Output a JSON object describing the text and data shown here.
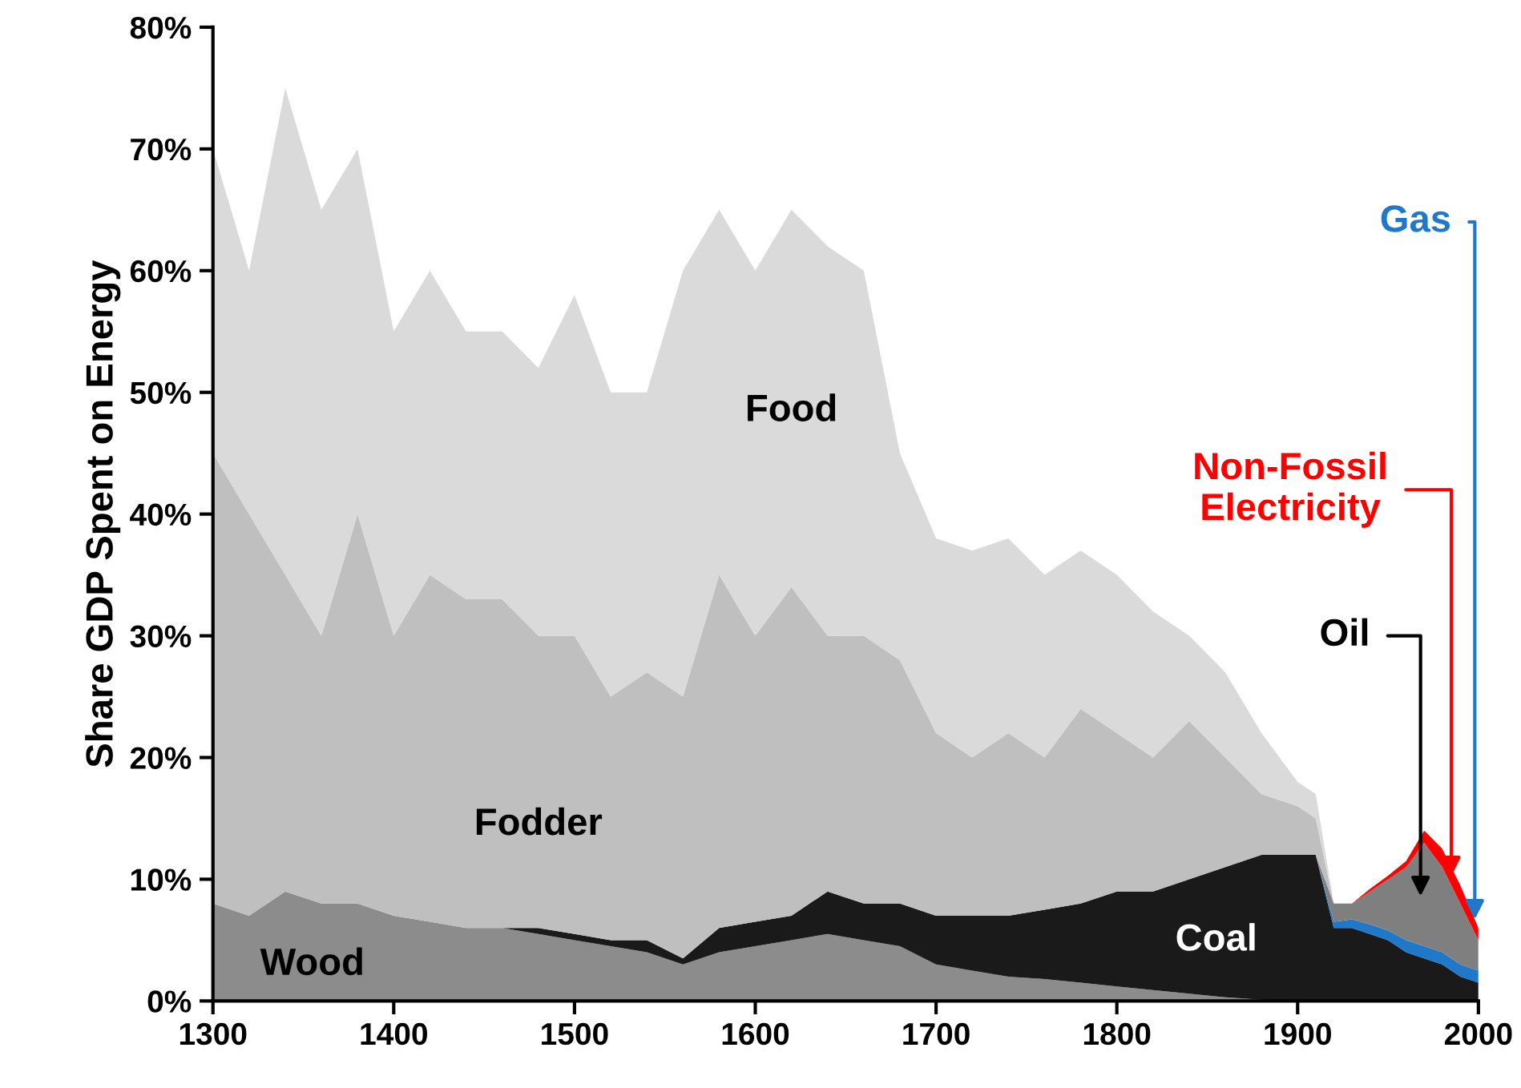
{
  "chart_data": {
    "type": "area",
    "stacked": true,
    "ylabel": "Share GDP Spent on Energy",
    "x": [
      1300,
      1320,
      1340,
      1360,
      1380,
      1400,
      1420,
      1440,
      1460,
      1480,
      1500,
      1520,
      1540,
      1560,
      1580,
      1600,
      1620,
      1640,
      1660,
      1680,
      1700,
      1720,
      1740,
      1760,
      1780,
      1800,
      1820,
      1840,
      1860,
      1880,
      1900,
      1910,
      1920,
      1930,
      1940,
      1950,
      1960,
      1970,
      1980,
      1990,
      2000
    ],
    "series": [
      {
        "name": "Wood",
        "color": "#8c8c8c",
        "values": [
          8,
          7,
          9,
          8,
          8,
          7,
          6.5,
          6,
          6,
          5.5,
          5,
          4.5,
          4,
          3,
          4,
          4.5,
          5,
          5.5,
          5,
          4.5,
          3,
          2.5,
          2,
          1.8,
          1.5,
          1.2,
          0.9,
          0.6,
          0.3,
          0.1,
          0,
          0,
          0,
          0,
          0,
          0,
          0,
          0,
          0,
          0,
          0
        ]
      },
      {
        "name": "Coal",
        "color": "#1a1a1a",
        "values": [
          0,
          0,
          0,
          0,
          0,
          0,
          0,
          0,
          0,
          0.5,
          0.5,
          0.5,
          1,
          0.5,
          2,
          2,
          2,
          3.5,
          3,
          3.5,
          4,
          4.5,
          5,
          5.7,
          6.5,
          7.8,
          8.1,
          9.4,
          10.7,
          11.9,
          12,
          12,
          6,
          6,
          5.5,
          5,
          4,
          3.5,
          3,
          2,
          1.5
        ]
      },
      {
        "name": "Gas",
        "color": "#1f78c8",
        "values": [
          0,
          0,
          0,
          0,
          0,
          0,
          0,
          0,
          0,
          0,
          0,
          0,
          0,
          0,
          0,
          0,
          0,
          0,
          0,
          0,
          0,
          0,
          0,
          0,
          0,
          0,
          0,
          0,
          0,
          0,
          0,
          0,
          0.5,
          0.7,
          0.8,
          0.8,
          1,
          1,
          1,
          1,
          1
        ]
      },
      {
        "name": "Oil",
        "color": "#7f7f7f",
        "values": [
          0,
          0,
          0,
          0,
          0,
          0,
          0,
          0,
          0,
          0,
          0,
          0,
          0,
          0,
          0,
          0,
          0,
          0,
          0,
          0,
          0,
          0,
          0,
          0,
          0,
          0,
          0,
          0,
          0,
          0,
          0,
          0,
          1.5,
          1.3,
          2.7,
          4.2,
          6,
          8.5,
          7,
          5,
          2.5
        ]
      },
      {
        "name": "Non-Fossil Electricity",
        "color": "#ff0000",
        "values": [
          0,
          0,
          0,
          0,
          0,
          0,
          0,
          0,
          0,
          0,
          0,
          0,
          0,
          0,
          0,
          0,
          0,
          0,
          0,
          0,
          0,
          0,
          0,
          0,
          0,
          0,
          0,
          0,
          0,
          0,
          0,
          0,
          0,
          0,
          0.2,
          0.3,
          0.5,
          1,
          1.5,
          1.5,
          1
        ]
      },
      {
        "name": "Fodder",
        "color": "#bfbfbf",
        "values": [
          37,
          33,
          26,
          22,
          32,
          23,
          28.5,
          27,
          27,
          24,
          24.5,
          20,
          22,
          21.5,
          29,
          23.5,
          27,
          21,
          22,
          20,
          15,
          13,
          15,
          12.5,
          16,
          13,
          11,
          13,
          9,
          5,
          4,
          3,
          0,
          0,
          0,
          0,
          0,
          0,
          0,
          0,
          0
        ]
      },
      {
        "name": "Food",
        "color": "#dadada",
        "values": [
          25,
          20,
          40,
          35,
          30,
          25,
          25,
          22,
          22,
          22,
          28,
          25,
          23,
          35,
          30,
          30,
          31,
          32,
          30,
          17,
          16,
          17,
          16,
          15,
          13,
          13,
          12,
          7,
          7,
          5,
          2,
          2,
          0,
          0,
          0,
          0,
          0,
          0,
          0,
          0,
          0
        ]
      }
    ],
    "xlim": [
      1300,
      2000
    ],
    "xticks": [
      1300,
      1400,
      1500,
      1600,
      1700,
      1800,
      1900,
      2000
    ],
    "ylim": [
      0,
      80
    ],
    "yticks": [
      {
        "value": 0,
        "label": "0%"
      },
      {
        "value": 10,
        "label": "10%"
      },
      {
        "value": 20,
        "label": "20%"
      },
      {
        "value": 30,
        "label": "30%"
      },
      {
        "value": 40,
        "label": "40%"
      },
      {
        "value": 50,
        "label": "50%"
      },
      {
        "value": 60,
        "label": "60%"
      },
      {
        "value": 70,
        "label": "70%"
      },
      {
        "value": 80,
        "label": "80%"
      }
    ],
    "grid": false,
    "legend": false
  }
}
